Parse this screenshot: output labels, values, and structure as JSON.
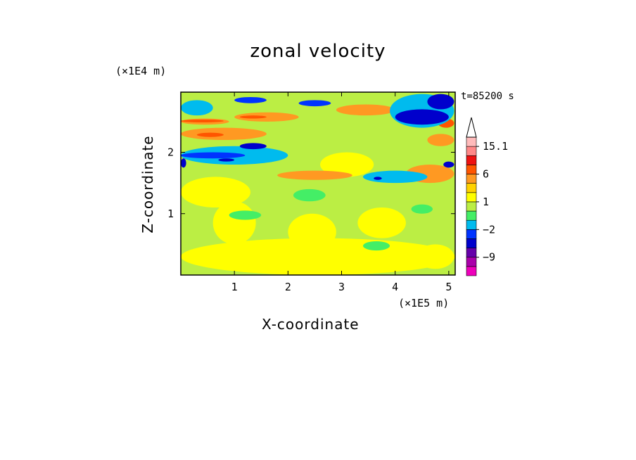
{
  "chart_data": {
    "type": "heatmap",
    "title": "zonal velocity",
    "xlabel": "X-coordinate",
    "ylabel": "Z-coordinate",
    "x_unit_label": "(×1E5 m)",
    "y_unit_label": "(×1E4 m)",
    "time_label": "t=85200 s",
    "xlim": [
      0.0,
      5.12
    ],
    "ylim": [
      0.0,
      2.98
    ],
    "x_ticks": [
      1,
      2,
      3,
      4,
      5
    ],
    "y_ticks": [
      1,
      2
    ],
    "colorbar": {
      "levels": [
        -15,
        -12,
        -9,
        -6,
        -3,
        -2,
        -1,
        0,
        1,
        2,
        3,
        6,
        9,
        12,
        15.1
      ],
      "colors": [
        "#ee00bb",
        "#aa00aa",
        "#6600aa",
        "#0000cc",
        "#0033ff",
        "#00bbee",
        "#44ee66",
        "#bbee44",
        "#ffff00",
        "#ffd200",
        "#ff9922",
        "#ff5500",
        "#ee1111",
        "#ff8888",
        "#ffbbbb"
      ],
      "tick_labels": [
        "15.1",
        "6",
        "1",
        "−2",
        "−9"
      ],
      "tick_values": [
        15.1,
        6,
        1,
        -2,
        -9
      ],
      "extend": "max"
    },
    "regions": [
      {
        "x": [
          0.0,
          5.12
        ],
        "z": [
          0.0,
          2.98
        ],
        "value": 0.5,
        "note": "background light green/yellow"
      },
      {
        "x": [
          0.0,
          5.12
        ],
        "z": [
          0.0,
          0.6
        ],
        "value": 1.0
      },
      {
        "x": [
          0.6,
          1.4
        ],
        "z": [
          0.5,
          1.2
        ],
        "value": 1.0
      },
      {
        "x": [
          2.0,
          2.9
        ],
        "z": [
          0.4,
          1.0
        ],
        "value": 1.0
      },
      {
        "x": [
          3.3,
          4.2
        ],
        "z": [
          0.6,
          1.1
        ],
        "value": 1.0
      },
      {
        "x": [
          0.0,
          1.3
        ],
        "z": [
          1.1,
          1.6
        ],
        "value": 1.0
      },
      {
        "x": [
          2.6,
          3.6
        ],
        "z": [
          1.6,
          2.0
        ],
        "value": 1.0
      },
      {
        "x": [
          4.4,
          5.1
        ],
        "z": [
          0.1,
          0.5
        ],
        "value": 1.0
      },
      {
        "x": [
          0.0,
          1.6
        ],
        "z": [
          2.2,
          2.4
        ],
        "value": 3.0
      },
      {
        "x": [
          0.0,
          0.9
        ],
        "z": [
          2.45,
          2.55
        ],
        "value": 3.0
      },
      {
        "x": [
          1.0,
          2.2
        ],
        "z": [
          2.5,
          2.65
        ],
        "value": 3.0
      },
      {
        "x": [
          2.9,
          4.0
        ],
        "z": [
          2.6,
          2.78
        ],
        "value": 3.0
      },
      {
        "x": [
          4.2,
          5.1
        ],
        "z": [
          1.5,
          1.8
        ],
        "value": 3.0
      },
      {
        "x": [
          1.8,
          3.2
        ],
        "z": [
          1.55,
          1.7
        ],
        "value": 3.0
      },
      {
        "x": [
          4.6,
          5.1
        ],
        "z": [
          2.1,
          2.3
        ],
        "value": 3.0
      },
      {
        "x": [
          0.0,
          0.8
        ],
        "z": [
          2.5,
          2.52
        ],
        "value": 6.0
      },
      {
        "x": [
          1.1,
          1.6
        ],
        "z": [
          2.55,
          2.6
        ],
        "value": 6.0
      },
      {
        "x": [
          0.3,
          0.8
        ],
        "z": [
          2.25,
          2.32
        ],
        "value": 6.0
      },
      {
        "x": [
          4.8,
          5.1
        ],
        "z": [
          2.4,
          2.55
        ],
        "value": 6.0
      },
      {
        "x": [
          0.0,
          2.0
        ],
        "z": [
          1.8,
          2.1
        ],
        "value": -1.5
      },
      {
        "x": [
          0.0,
          1.2
        ],
        "z": [
          1.9,
          2.0
        ],
        "value": -2.5
      },
      {
        "x": [
          1.1,
          1.6
        ],
        "z": [
          2.05,
          2.15
        ],
        "value": -6.0
      },
      {
        "x": [
          0.7,
          1.0
        ],
        "z": [
          1.85,
          1.9
        ],
        "value": -6.0
      },
      {
        "x": [
          3.9,
          5.1
        ],
        "z": [
          2.4,
          2.95
        ],
        "value": -2.0
      },
      {
        "x": [
          4.0,
          5.0
        ],
        "z": [
          2.45,
          2.7
        ],
        "value": -6.0
      },
      {
        "x": [
          4.6,
          5.1
        ],
        "z": [
          2.7,
          2.95
        ],
        "value": -6.0
      },
      {
        "x": [
          0.0,
          0.6
        ],
        "z": [
          2.6,
          2.85
        ],
        "value": -1.5
      },
      {
        "x": [
          1.0,
          1.6
        ],
        "z": [
          2.8,
          2.9
        ],
        "value": -2.5
      },
      {
        "x": [
          2.2,
          2.8
        ],
        "z": [
          2.75,
          2.85
        ],
        "value": -2.5
      },
      {
        "x": [
          3.4,
          4.6
        ],
        "z": [
          1.5,
          1.7
        ],
        "value": -1.5
      },
      {
        "x": [
          3.6,
          3.75
        ],
        "z": [
          1.55,
          1.6
        ],
        "value": -6.0
      },
      {
        "x": [
          4.9,
          5.1
        ],
        "z": [
          1.75,
          1.85
        ],
        "value": -6.0
      },
      {
        "x": [
          0.0,
          0.1
        ],
        "z": [
          1.75,
          1.9
        ],
        "value": -6.0
      },
      {
        "x": [
          2.1,
          2.7
        ],
        "z": [
          1.2,
          1.4
        ],
        "value": -1.0
      },
      {
        "x": [
          0.9,
          1.5
        ],
        "z": [
          0.9,
          1.05
        ],
        "value": -1.0
      },
      {
        "x": [
          3.4,
          3.9
        ],
        "z": [
          0.4,
          0.55
        ],
        "value": -1.0
      },
      {
        "x": [
          4.3,
          4.7
        ],
        "z": [
          1.0,
          1.15
        ],
        "value": -1.0
      }
    ]
  }
}
